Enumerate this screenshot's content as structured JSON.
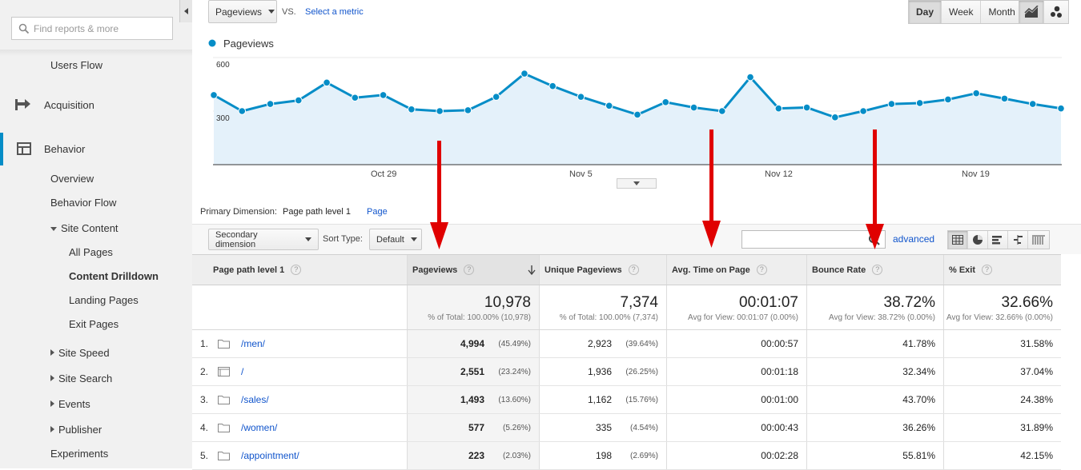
{
  "sidebar": {
    "search_placeholder": "Find reports & more",
    "items": [
      {
        "label": "Users Flow"
      },
      {
        "label": "Acquisition"
      },
      {
        "label": "Behavior"
      },
      {
        "label": "Overview"
      },
      {
        "label": "Behavior Flow"
      },
      {
        "label": "Site Content"
      },
      {
        "label": "All Pages"
      },
      {
        "label": "Content Drilldown"
      },
      {
        "label": "Landing Pages"
      },
      {
        "label": "Exit Pages"
      },
      {
        "label": "Site Speed"
      },
      {
        "label": "Site Search"
      },
      {
        "label": "Events"
      },
      {
        "label": "Publisher"
      },
      {
        "label": "Experiments"
      }
    ]
  },
  "toolbar": {
    "metric": "Pageviews",
    "vs": "VS.",
    "select_metric": "Select a metric",
    "period_buttons": [
      "Day",
      "Week",
      "Month"
    ],
    "active_period": "Day"
  },
  "chart_data": {
    "type": "area",
    "legend": "Pageviews",
    "y_ticks": [
      "600",
      "300"
    ],
    "x_ticks": [
      "Oct 29",
      "Nov 5",
      "Nov 12",
      "Nov 19"
    ],
    "ylim": [
      0,
      600
    ],
    "values": [
      390,
      300,
      340,
      360,
      460,
      375,
      390,
      310,
      300,
      305,
      380,
      510,
      440,
      380,
      330,
      280,
      350,
      320,
      300,
      490,
      315,
      320,
      265,
      300,
      340,
      345,
      365,
      400,
      370,
      340,
      315
    ],
    "color": "#058dc7"
  },
  "dimension": {
    "primary_label": "Primary Dimension:",
    "selected": "Page path level 1",
    "alt": "Page",
    "secondary_btn": "Secondary dimension",
    "sort_label": "Sort Type:",
    "sort_value": "Default",
    "advanced": "advanced"
  },
  "table": {
    "headers": [
      "Page path level 1",
      "Pageviews",
      "Unique Pageviews",
      "Avg. Time on Page",
      "Bounce Rate",
      "% Exit"
    ],
    "totals": [
      {
        "big": "10,978",
        "sub": "% of Total: 100.00% (10,978)"
      },
      {
        "big": "7,374",
        "sub": "% of Total: 100.00% (7,374)"
      },
      {
        "big": "00:01:07",
        "sub": "Avg for View: 00:01:07 (0.00%)"
      },
      {
        "big": "38.72%",
        "sub": "Avg for View: 38.72% (0.00%)"
      },
      {
        "big": "32.66%",
        "sub": "Avg for View: 32.66% (0.00%)"
      }
    ],
    "rows": [
      {
        "num": "1.",
        "path": "/men/",
        "pv": "4,994",
        "pv_pct": "(45.49%)",
        "upv": "2,923",
        "upv_pct": "(39.64%)",
        "time": "00:00:57",
        "bounce": "41.78%",
        "exit": "31.58%"
      },
      {
        "num": "2.",
        "path": "/",
        "pv": "2,551",
        "pv_pct": "(23.24%)",
        "upv": "1,936",
        "upv_pct": "(26.25%)",
        "time": "00:01:18",
        "bounce": "32.34%",
        "exit": "37.04%"
      },
      {
        "num": "3.",
        "path": "/sales/",
        "pv": "1,493",
        "pv_pct": "(13.60%)",
        "upv": "1,162",
        "upv_pct": "(15.76%)",
        "time": "00:01:00",
        "bounce": "43.70%",
        "exit": "24.38%"
      },
      {
        "num": "4.",
        "path": "/women/",
        "pv": "577",
        "pv_pct": "(5.26%)",
        "upv": "335",
        "upv_pct": "(4.54%)",
        "time": "00:00:43",
        "bounce": "36.26%",
        "exit": "31.89%"
      },
      {
        "num": "5.",
        "path": "/appointment/",
        "pv": "223",
        "pv_pct": "(2.03%)",
        "upv": "198",
        "upv_pct": "(2.69%)",
        "time": "00:02:28",
        "bounce": "55.81%",
        "exit": "42.15%"
      }
    ]
  },
  "colors": {
    "accent": "#058dc7",
    "link": "#1155cc",
    "annotation": "#e00000"
  }
}
